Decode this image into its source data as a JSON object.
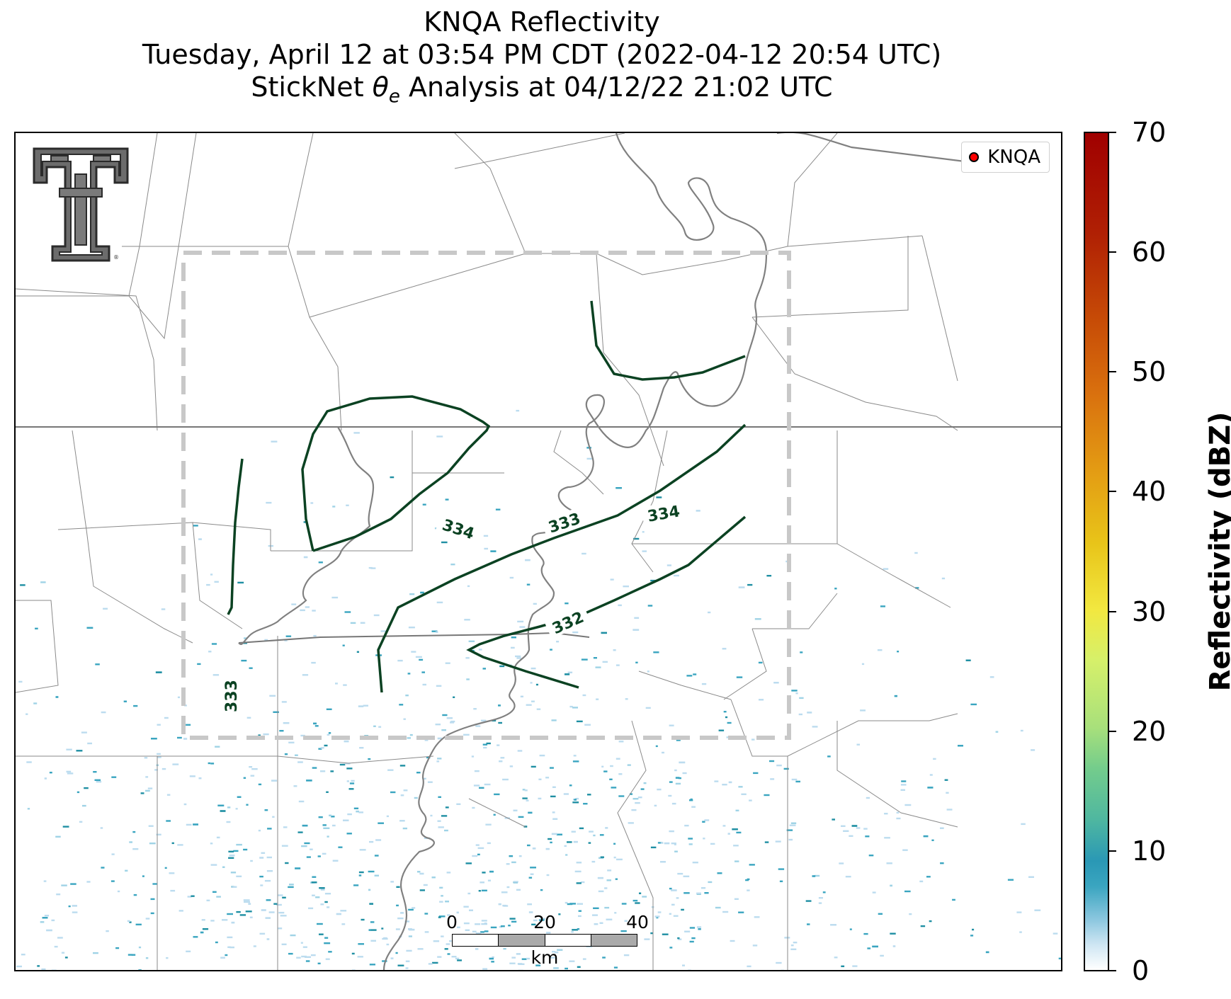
{
  "title": {
    "line1": "KNQA Reflectivity",
    "line2": "Tuesday, April 12 at 03:54 PM CDT (2022-04-12 20:54 UTC)",
    "line3_prefix": "StickNet ",
    "line3_symbol": "θ",
    "line3_subscript": "e",
    "line3_suffix": " Analysis at 04/12/22 21:02 UTC"
  },
  "legend": {
    "label": "KNQA",
    "marker_color": "#ff0000"
  },
  "colorbar": {
    "label": "Reflectivity (dBZ)",
    "ticks": [
      "0",
      "10",
      "20",
      "30",
      "40",
      "50",
      "60",
      "70"
    ],
    "range": [
      0,
      70
    ]
  },
  "scalebar": {
    "ticks": [
      "0",
      "20",
      "40"
    ],
    "unit": "km"
  },
  "contours": {
    "color": "#0b4222",
    "labels": [
      "334",
      "334",
      "333",
      "333",
      "332"
    ]
  },
  "colors": {
    "county_lines": "#888888",
    "state_lines": "#777777",
    "river": "#808080",
    "domain_box": "#c8c8c8",
    "echo_light": "#bcdcef",
    "echo_mid": "#3aa5c0",
    "echo_dark": "#1f8fa3"
  },
  "logo": {
    "name": "Texas Tech double-T",
    "mark": "®"
  }
}
